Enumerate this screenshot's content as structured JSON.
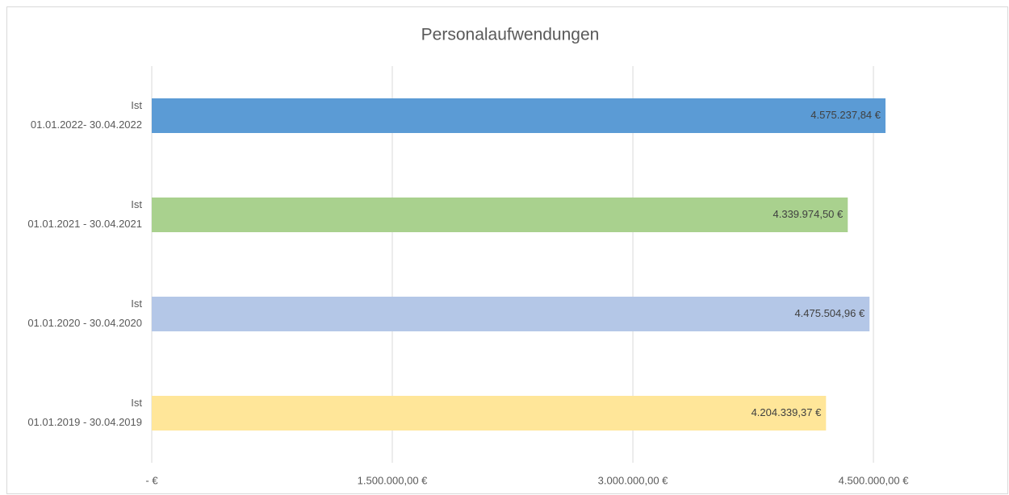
{
  "chart_data": {
    "type": "barh",
    "title": "Personalaufwendungen",
    "categories": [
      [
        "Ist",
        "01.01.2022- 30.04.2022"
      ],
      [
        "Ist",
        "01.01.2021 - 30.04.2021"
      ],
      [
        "Ist",
        "01.01.2020 - 30.04.2020"
      ],
      [
        "Ist",
        "01.01.2019 - 30.04.2019"
      ]
    ],
    "values": [
      4575237.84,
      4339974.5,
      4475504.96,
      4204339.37
    ],
    "value_labels": [
      "4.575.237,84 €",
      "4.339.974,50 €",
      "4.475.504,96 €",
      "4.204.339,37 €"
    ],
    "colors": [
      "#5b9bd5",
      "#a9d18e",
      "#b4c7e7",
      "#ffe699"
    ],
    "xlim": [
      0,
      5300000
    ],
    "xticks": [
      {
        "value": 0,
        "label": "-   €"
      },
      {
        "value": 1500000,
        "label": "1.500.000,00 €"
      },
      {
        "value": 3000000,
        "label": "3.000.000,00 €"
      },
      {
        "value": 4500000,
        "label": "4.500.000,00 €"
      }
    ],
    "grid": true
  }
}
